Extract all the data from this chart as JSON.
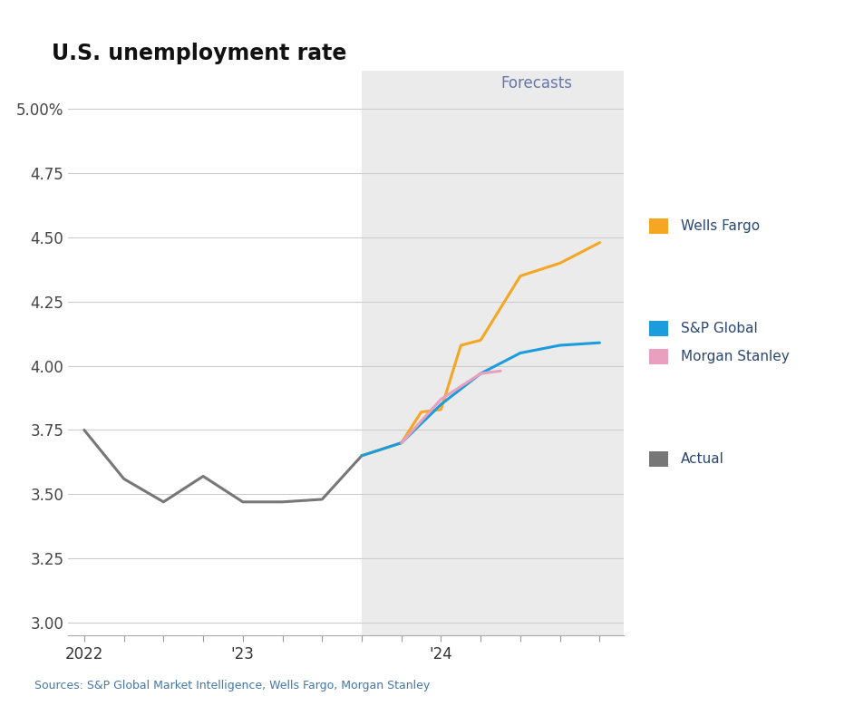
{
  "title": "U.S. unemployment rate",
  "subtitle": "Forecasts",
  "source_text": "Sources: S&P Global Market Intelligence, Wells Fargo, Morgan Stanley",
  "ylim": [
    2.95,
    5.15
  ],
  "yticks": [
    3.0,
    3.25,
    3.5,
    3.75,
    4.0,
    4.25,
    4.5,
    4.75,
    5.0
  ],
  "ytick_labels": [
    "3.00",
    "3.25",
    "3.50",
    "3.75",
    "4.00",
    "4.25",
    "4.50",
    "4.75",
    "5.00%"
  ],
  "background_color": "#ffffff",
  "forecast_bg_color": "#ebebeb",
  "grid_color": "#cccccc",
  "actual": {
    "x": [
      0,
      0.5,
      1.0,
      1.5,
      2.0,
      2.5,
      3.0,
      3.5
    ],
    "y": [
      3.75,
      3.56,
      3.47,
      3.57,
      3.47,
      3.47,
      3.48,
      3.65
    ],
    "color": "#777777",
    "label": "Actual",
    "linewidth": 2.2
  },
  "wells_fargo": {
    "label": "Wells Fargo",
    "color": "#F5A623",
    "linewidth": 2.2,
    "x": [
      3.5,
      4.0,
      4.25,
      4.5,
      4.75,
      5.0,
      5.5,
      6.0,
      6.5
    ],
    "y": [
      3.65,
      3.7,
      3.82,
      3.83,
      4.08,
      4.1,
      4.35,
      4.4,
      4.48
    ]
  },
  "sp_global": {
    "label": "S&P Global",
    "color": "#1B9CDD",
    "linewidth": 2.2,
    "x": [
      3.5,
      4.0,
      4.5,
      5.0,
      5.5,
      6.0,
      6.5
    ],
    "y": [
      3.65,
      3.7,
      3.85,
      3.97,
      4.05,
      4.08,
      4.09
    ]
  },
  "morgan_stanley": {
    "label": "Morgan Stanley",
    "color": "#E8A0BE",
    "linewidth": 2.2,
    "x": [
      4.0,
      4.5,
      5.0,
      5.25
    ],
    "y": [
      3.7,
      3.87,
      3.97,
      3.98
    ]
  },
  "forecast_x_start": 3.5,
  "xlim_min": -0.2,
  "xlim_max": 6.8,
  "xtick_positions": [
    0,
    0.5,
    1.0,
    1.5,
    2.0,
    2.5,
    3.0,
    3.5,
    4.0,
    4.5,
    5.0,
    5.5,
    6.0,
    6.5
  ],
  "xtick_labels": [
    "2022",
    "",
    "",
    "",
    "'23",
    "",
    "",
    "",
    "",
    "'24",
    "",
    "",
    "",
    ""
  ],
  "title_fontsize": 17,
  "tick_fontsize": 12,
  "legend_text_color": "#2C4770",
  "forecasts_label_color": "#6677AA",
  "source_color": "#4477AA"
}
